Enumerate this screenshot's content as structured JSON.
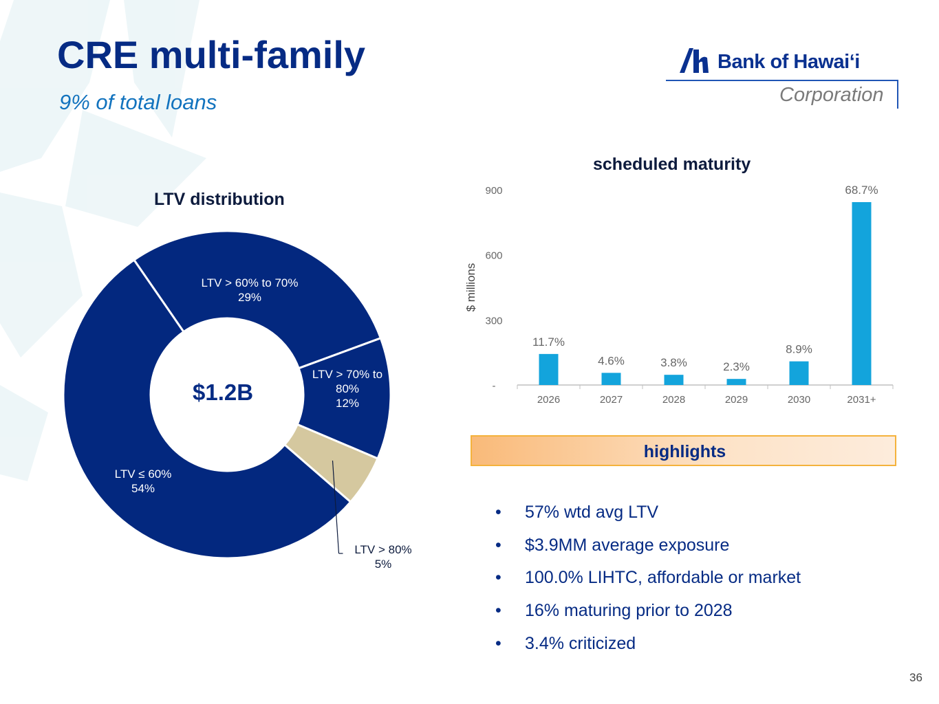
{
  "header": {
    "title": "CRE multi-family",
    "subtitle": "9% of total loans"
  },
  "logo": {
    "name": "Bank of Hawaiʻi",
    "sub": "Corporation",
    "icon": "bank-of-hawaii-mark"
  },
  "colors": {
    "navy": "#062b84",
    "donut_navy": "#03287f",
    "tan": "#d5c89f",
    "bar_blue": "#13a4dc"
  },
  "chart_data": [
    {
      "type": "pie",
      "title": "LTV distribution",
      "center_label": "$1.2B",
      "slices": [
        {
          "label_lines": [
            "LTV > 60% to 70%",
            "29%"
          ],
          "value": 29
        },
        {
          "label_lines": [
            "LTV > 70% to",
            "80%",
            "12%"
          ],
          "value": 12
        },
        {
          "label_lines": [
            "LTV > 80%",
            "5%"
          ],
          "value": 5
        },
        {
          "label_lines": [
            "LTV ≤ 60%",
            "54%"
          ],
          "value": 54
        }
      ]
    },
    {
      "type": "bar",
      "title": "scheduled maturity",
      "ylabel": "$ millions",
      "categories": [
        "2026",
        "2027",
        "2028",
        "2029",
        "2030",
        "2031+"
      ],
      "values": [
        143,
        56,
        47,
        28,
        109,
        843
      ],
      "data_labels": [
        "11.7%",
        "4.6%",
        "3.8%",
        "2.3%",
        "8.9%",
        "68.7%"
      ],
      "ylim": [
        0,
        900
      ],
      "yticks": [
        0,
        300,
        600,
        900
      ],
      "ytick_labels": [
        "-",
        "300",
        "600",
        "900"
      ]
    }
  ],
  "highlights": {
    "title": "highlights",
    "bullet_char": "•",
    "items": [
      "57% wtd avg LTV",
      "$3.9MM average exposure",
      "100.0% LIHTC, affordable or market",
      "16% maturing prior to 2028",
      "3.4% criticized"
    ]
  },
  "page_number": "36"
}
